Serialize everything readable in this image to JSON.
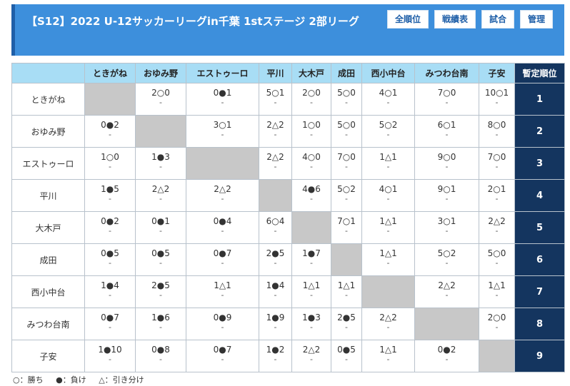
{
  "header": {
    "title": "【S12】2022 U-12サッカーリーグin千葉 1stステージ 2部リーグ",
    "nav": [
      "全順位",
      "戦績表",
      "試合",
      "管理"
    ]
  },
  "table": {
    "corner": "",
    "columns": [
      "ときがね",
      "おゆみ野",
      "エストゥーロ",
      "平川",
      "大木戸",
      "成田",
      "西小中台",
      "みつわ台南",
      "子安"
    ],
    "rank_header": "暫定順位",
    "rows": [
      {
        "team": "ときがね",
        "rank": "1",
        "cells": [
          null,
          {
            "s": "2○0",
            "d": "-"
          },
          {
            "s": "0●1",
            "d": "-"
          },
          {
            "s": "5○1",
            "d": "-"
          },
          {
            "s": "2○0",
            "d": "-"
          },
          {
            "s": "5○0",
            "d": "-"
          },
          {
            "s": "4○1",
            "d": "-"
          },
          {
            "s": "7○0",
            "d": "-"
          },
          {
            "s": "10○1",
            "d": "-"
          }
        ]
      },
      {
        "team": "おゆみ野",
        "rank": "2",
        "cells": [
          {
            "s": "0●2",
            "d": "-"
          },
          null,
          {
            "s": "3○1",
            "d": "-"
          },
          {
            "s": "2△2",
            "d": "-"
          },
          {
            "s": "1○0",
            "d": "-"
          },
          {
            "s": "5○0",
            "d": "-"
          },
          {
            "s": "5○2",
            "d": "-"
          },
          {
            "s": "6○1",
            "d": "-"
          },
          {
            "s": "8○0",
            "d": "-"
          }
        ]
      },
      {
        "team": "エストゥーロ",
        "rank": "3",
        "cells": [
          {
            "s": "1○0",
            "d": "-"
          },
          {
            "s": "1●3",
            "d": "-"
          },
          null,
          {
            "s": "2△2",
            "d": "-"
          },
          {
            "s": "4○0",
            "d": "-"
          },
          {
            "s": "7○0",
            "d": "-"
          },
          {
            "s": "1△1",
            "d": "-"
          },
          {
            "s": "9○0",
            "d": "-"
          },
          {
            "s": "7○0",
            "d": "-"
          }
        ]
      },
      {
        "team": "平川",
        "rank": "4",
        "cells": [
          {
            "s": "1●5",
            "d": "-"
          },
          {
            "s": "2△2",
            "d": "-"
          },
          {
            "s": "2△2",
            "d": "-"
          },
          null,
          {
            "s": "4●6",
            "d": "-"
          },
          {
            "s": "5○2",
            "d": "-"
          },
          {
            "s": "4○1",
            "d": "-"
          },
          {
            "s": "9○1",
            "d": "-"
          },
          {
            "s": "2○1",
            "d": "-"
          }
        ]
      },
      {
        "team": "大木戸",
        "rank": "5",
        "cells": [
          {
            "s": "0●2",
            "d": "-"
          },
          {
            "s": "0●1",
            "d": "-"
          },
          {
            "s": "0●4",
            "d": "-"
          },
          {
            "s": "6○4",
            "d": "-"
          },
          null,
          {
            "s": "7○1",
            "d": "-"
          },
          {
            "s": "1△1",
            "d": "-"
          },
          {
            "s": "3○1",
            "d": "-"
          },
          {
            "s": "2△2",
            "d": "-"
          }
        ]
      },
      {
        "team": "成田",
        "rank": "6",
        "cells": [
          {
            "s": "0●5",
            "d": "-"
          },
          {
            "s": "0●5",
            "d": "-"
          },
          {
            "s": "0●7",
            "d": "-"
          },
          {
            "s": "2●5",
            "d": "-"
          },
          {
            "s": "1●7",
            "d": "-"
          },
          null,
          {
            "s": "1△1",
            "d": "-"
          },
          {
            "s": "5○2",
            "d": "-"
          },
          {
            "s": "5○0",
            "d": "-"
          }
        ]
      },
      {
        "team": "西小中台",
        "rank": "7",
        "cells": [
          {
            "s": "1●4",
            "d": "-"
          },
          {
            "s": "2●5",
            "d": "-"
          },
          {
            "s": "1△1",
            "d": "-"
          },
          {
            "s": "1●4",
            "d": "-"
          },
          {
            "s": "1△1",
            "d": "-"
          },
          {
            "s": "1△1",
            "d": "-"
          },
          null,
          {
            "s": "2△2",
            "d": "-"
          },
          {
            "s": "1△1",
            "d": "-"
          }
        ]
      },
      {
        "team": "みつわ台南",
        "rank": "8",
        "cells": [
          {
            "s": "0●7",
            "d": "-"
          },
          {
            "s": "1●6",
            "d": "-"
          },
          {
            "s": "0●9",
            "d": "-"
          },
          {
            "s": "1●9",
            "d": "-"
          },
          {
            "s": "1●3",
            "d": "-"
          },
          {
            "s": "2●5",
            "d": "-"
          },
          {
            "s": "2△2",
            "d": "-"
          },
          null,
          {
            "s": "2○0",
            "d": "-"
          }
        ]
      },
      {
        "team": "子安",
        "rank": "9",
        "cells": [
          {
            "s": "1●10",
            "d": "-"
          },
          {
            "s": "0●8",
            "d": "-"
          },
          {
            "s": "0●7",
            "d": "-"
          },
          {
            "s": "1●2",
            "d": "-"
          },
          {
            "s": "2△2",
            "d": "-"
          },
          {
            "s": "0●5",
            "d": "-"
          },
          {
            "s": "1△1",
            "d": "-"
          },
          {
            "s": "0●2",
            "d": "-"
          },
          null
        ]
      }
    ]
  },
  "legend": [
    "○：勝ち",
    "●：負け",
    "△：引き分け"
  ]
}
